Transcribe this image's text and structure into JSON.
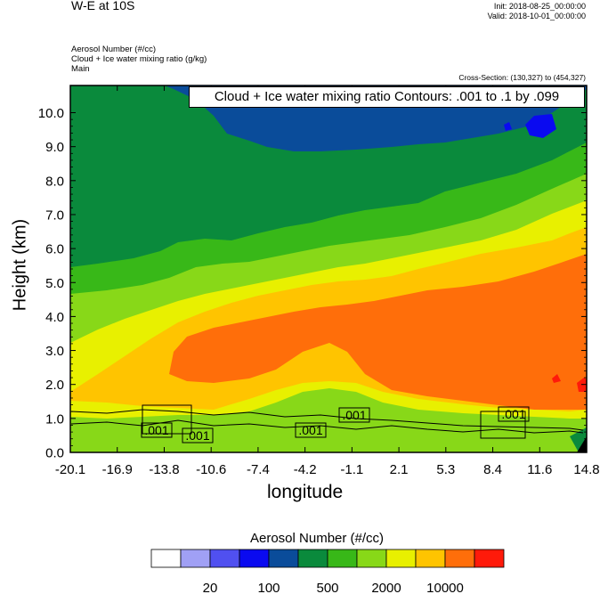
{
  "header": {
    "title": "W-E at 10S",
    "init": "Init: 2018-08-25_00:00:00",
    "valid": "Valid: 2018-10-01_00:00:00",
    "field1": "Aerosol Number   (#/cc)",
    "field2": "Cloud + Ice water mixing ratio   (g/kg)",
    "field3": "Main",
    "cross_section": "Cross-Section: (130,327) to (454,327)"
  },
  "chart_data": {
    "type": "heatmap",
    "contour_title": "Cloud + Ice water mixing ratio Contours: .001 to .1 by .099",
    "xlabel": "longitude",
    "ylabel": "Height (km)",
    "xticks": [
      "-20.1",
      "-16.9",
      "-13.8",
      "-10.6",
      "-7.4",
      "-4.2",
      "-1.1",
      "2.1",
      "5.3",
      "8.4",
      "11.6",
      "14.8"
    ],
    "yticks": [
      "0.0",
      "1.0",
      "2.0",
      "3.0",
      "4.0",
      "5.0",
      "6.0",
      "7.0",
      "8.0",
      "9.0",
      "10.0"
    ],
    "xlim": [
      -20.1,
      14.8
    ],
    "ylim": [
      0,
      10.8
    ],
    "colorbar_title": "Aerosol Number  (#/cc)",
    "colorbar_labels": [
      "20",
      "100",
      "500",
      "2000",
      "10000"
    ],
    "colorbar_colors": [
      "#ffffff",
      "#a0a0f5",
      "#5050f0",
      "#0a0af0",
      "#0a4c9a",
      "#0a8a3c",
      "#38b818",
      "#88d818",
      "#e8f000",
      "#ffc400",
      "#ff6e0a",
      "#ff1a0a"
    ],
    "contour_labels": [
      ".001",
      ".001",
      ".001",
      ".001",
      ".001"
    ]
  }
}
